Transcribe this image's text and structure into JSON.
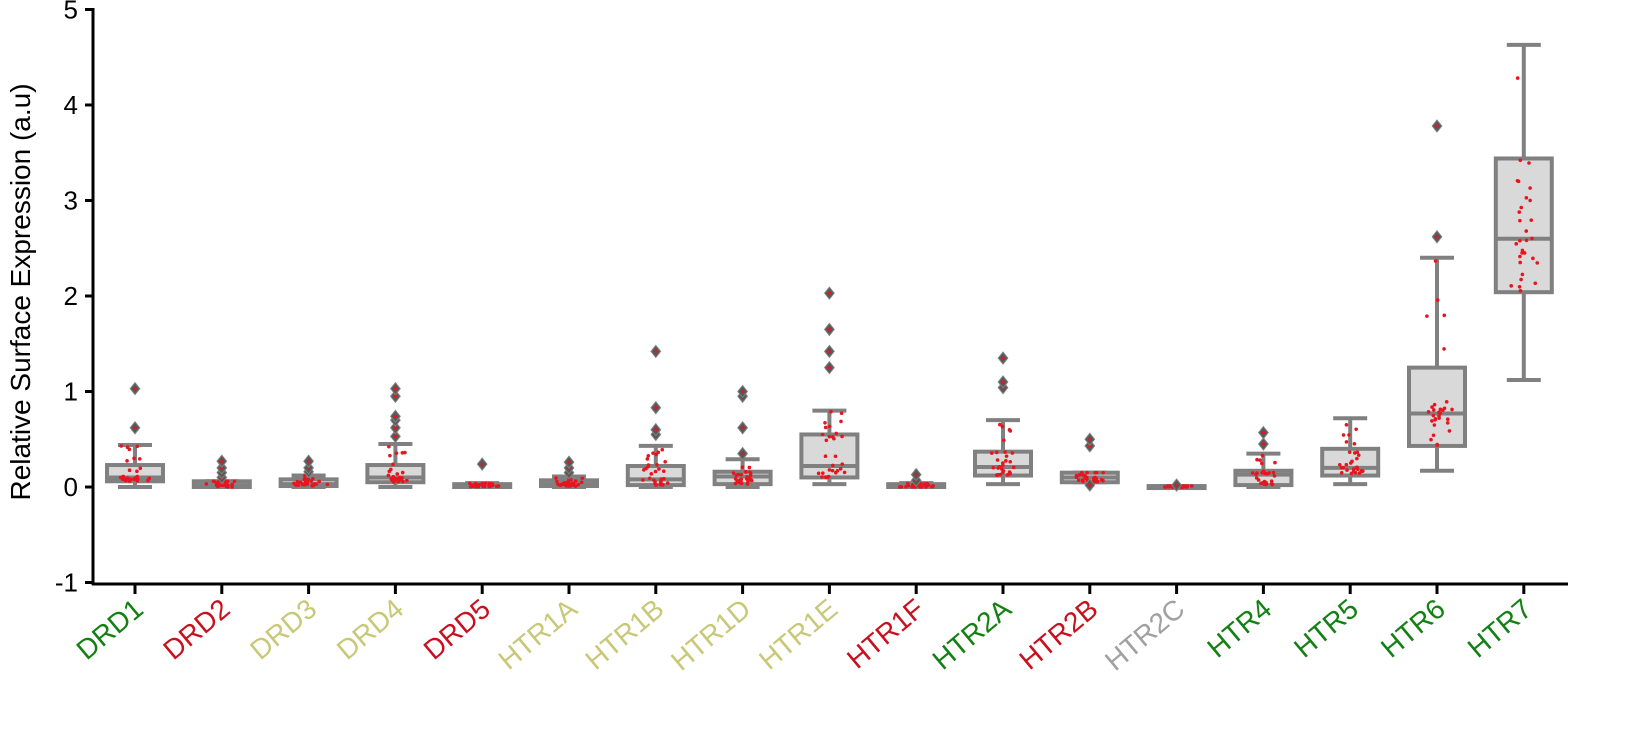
{
  "chart_data": {
    "type": "box",
    "title": "",
    "xlabel": "",
    "ylabel": "Relative Surface Expression (a.u)",
    "ylim": [
      -1,
      5
    ],
    "yticks": [
      -1,
      0,
      1,
      2,
      3,
      4,
      5
    ],
    "grid": false,
    "legend": "none",
    "colors": {
      "box_fill": "#d9d9d9",
      "box_stroke": "#808080",
      "point": "#e8141e",
      "green": "#128012",
      "red": "#c8101e",
      "olive": "#c8c878",
      "gray": "#a0a0a0"
    },
    "categories": [
      {
        "label": "DRD1",
        "color": "green",
        "q1": 0.06,
        "median": 0.1,
        "q3": 0.23,
        "whisker_low": 0.0,
        "whisker_high": 0.44,
        "outliers": [
          0.62,
          1.03
        ]
      },
      {
        "label": "DRD2",
        "color": "red",
        "q1": 0.0,
        "median": 0.02,
        "q3": 0.06,
        "whisker_low": 0.0,
        "whisker_high": 0.06,
        "outliers": [
          0.1,
          0.15,
          0.2,
          0.27
        ]
      },
      {
        "label": "DRD3",
        "color": "olive",
        "q1": 0.01,
        "median": 0.03,
        "q3": 0.08,
        "whisker_low": 0.0,
        "whisker_high": 0.12,
        "outliers": [
          0.16,
          0.2,
          0.27
        ]
      },
      {
        "label": "DRD4",
        "color": "olive",
        "q1": 0.05,
        "median": 0.1,
        "q3": 0.23,
        "whisker_low": 0.0,
        "whisker_high": 0.45,
        "outliers": [
          0.53,
          0.62,
          0.7,
          0.74,
          0.95,
          1.03
        ]
      },
      {
        "label": "DRD5",
        "color": "red",
        "q1": 0.0,
        "median": 0.01,
        "q3": 0.03,
        "whisker_low": 0.0,
        "whisker_high": 0.04,
        "outliers": [
          0.24
        ]
      },
      {
        "label": "HTR1A",
        "color": "olive",
        "q1": 0.01,
        "median": 0.03,
        "q3": 0.07,
        "whisker_low": 0.0,
        "whisker_high": 0.11,
        "outliers": [
          0.15,
          0.2,
          0.26
        ]
      },
      {
        "label": "HTR1B",
        "color": "olive",
        "q1": 0.02,
        "median": 0.08,
        "q3": 0.22,
        "whisker_low": 0.0,
        "whisker_high": 0.43,
        "outliers": [
          0.55,
          0.6,
          0.83,
          1.42
        ]
      },
      {
        "label": "HTR1D",
        "color": "olive",
        "q1": 0.03,
        "median": 0.11,
        "q3": 0.16,
        "whisker_low": 0.0,
        "whisker_high": 0.29,
        "outliers": [
          0.35,
          0.62,
          0.95,
          1.0
        ]
      },
      {
        "label": "HTR1E",
        "color": "olive",
        "q1": 0.1,
        "median": 0.22,
        "q3": 0.55,
        "whisker_low": 0.03,
        "whisker_high": 0.8,
        "outliers": [
          1.25,
          1.42,
          1.65,
          2.03
        ]
      },
      {
        "label": "HTR1F",
        "color": "red",
        "q1": 0.0,
        "median": 0.01,
        "q3": 0.03,
        "whisker_low": 0.0,
        "whisker_high": 0.04,
        "outliers": [
          0.07,
          0.13
        ]
      },
      {
        "label": "HTR2A",
        "color": "green",
        "q1": 0.12,
        "median": 0.21,
        "q3": 0.37,
        "whisker_low": 0.03,
        "whisker_high": 0.7,
        "outliers": [
          1.04,
          1.1,
          1.35
        ]
      },
      {
        "label": "HTR2B",
        "color": "red",
        "q1": 0.05,
        "median": 0.1,
        "q3": 0.15,
        "whisker_low": 0.05,
        "whisker_high": 0.15,
        "outliers": [
          0.02,
          0.43,
          0.5
        ]
      },
      {
        "label": "HTR2C",
        "color": "gray",
        "q1": 0.0,
        "median": 0.0,
        "q3": 0.01,
        "whisker_low": 0.0,
        "whisker_high": 0.01,
        "outliers": [
          0.02
        ]
      },
      {
        "label": "HTR4",
        "color": "green",
        "q1": 0.02,
        "median": 0.13,
        "q3": 0.17,
        "whisker_low": 0.0,
        "whisker_high": 0.35,
        "outliers": [
          0.45,
          0.57
        ]
      },
      {
        "label": "HTR5",
        "color": "green",
        "q1": 0.12,
        "median": 0.2,
        "q3": 0.4,
        "whisker_low": 0.03,
        "whisker_high": 0.72,
        "outliers": []
      },
      {
        "label": "HTR6",
        "color": "green",
        "q1": 0.43,
        "median": 0.77,
        "q3": 1.25,
        "whisker_low": 0.17,
        "whisker_high": 2.4,
        "outliers": [
          2.62,
          3.78
        ]
      },
      {
        "label": "HTR7",
        "color": "green",
        "q1": 2.04,
        "median": 2.6,
        "q3": 3.44,
        "whisker_low": 1.12,
        "whisker_high": 4.63,
        "outliers": []
      }
    ]
  }
}
